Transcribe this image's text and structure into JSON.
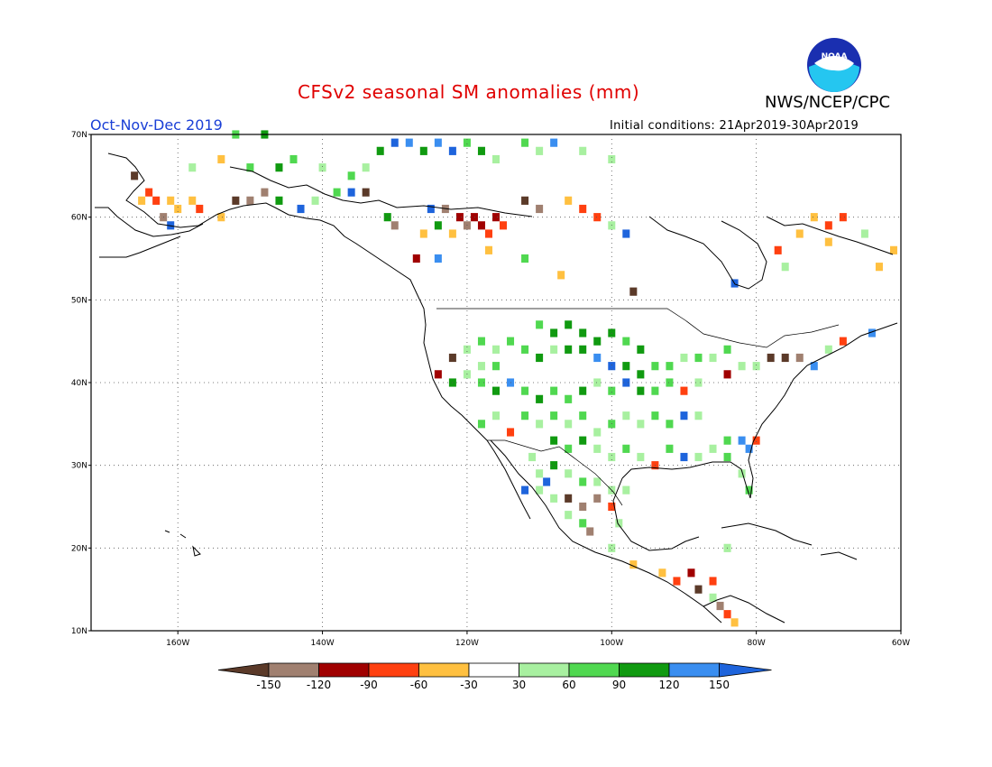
{
  "header": {
    "title": "CFSv2 seasonal SM anomalies (mm)",
    "agency": "NWS/NCEP/CPC",
    "season": "Oct-Nov-Dec 2019",
    "initial_conditions": "Initial conditions: 21Apr2019-30Apr2019",
    "logo_text": "NOAA"
  },
  "map": {
    "projection": "lat-lon",
    "lon_range": [
      -172,
      -60
    ],
    "lat_range": [
      10,
      70
    ],
    "lat_ticks": [
      "10N",
      "20N",
      "30N",
      "40N",
      "50N",
      "60N",
      "70N"
    ],
    "lon_ticks": [
      "160W",
      "140W",
      "120W",
      "100W",
      "80W",
      "60W"
    ],
    "grid": true
  },
  "colorbar": {
    "labels": [
      "-150",
      "-120",
      "-90",
      "-60",
      "-30",
      "30",
      "60",
      "90",
      "120",
      "150"
    ],
    "colors": [
      "#5b3a29",
      "#a08070",
      "#a00000",
      "#ff4010",
      "#ffc040",
      "#ffffff",
      "#a8f0a0",
      "#50d850",
      "#109a10",
      "#3a8ef0",
      "#1e64dc"
    ]
  },
  "anomaly_cells": [
    {
      "lon": -166,
      "lat": 65,
      "c": "#5b3a29"
    },
    {
      "lon": -164,
      "lat": 63,
      "c": "#ff4010"
    },
    {
      "lon": -165,
      "lat": 62,
      "c": "#ffc040"
    },
    {
      "lon": -163,
      "lat": 62,
      "c": "#ff4010"
    },
    {
      "lon": -161,
      "lat": 62,
      "c": "#ffc040"
    },
    {
      "lon": -160,
      "lat": 61,
      "c": "#ffc040"
    },
    {
      "lon": -158,
      "lat": 62,
      "c": "#ffc040"
    },
    {
      "lon": -157,
      "lat": 61,
      "c": "#ff4010"
    },
    {
      "lon": -162,
      "lat": 60,
      "c": "#a08070"
    },
    {
      "lon": -161,
      "lat": 59,
      "c": "#1e64dc"
    },
    {
      "lon": -154,
      "lat": 60,
      "c": "#ffc040"
    },
    {
      "lon": -152,
      "lat": 62,
      "c": "#5b3a29"
    },
    {
      "lon": -150,
      "lat": 62,
      "c": "#a08070"
    },
    {
      "lon": -148,
      "lat": 63,
      "c": "#a08070"
    },
    {
      "lon": -146,
      "lat": 62,
      "c": "#109a10"
    },
    {
      "lon": -143,
      "lat": 61,
      "c": "#1e64dc"
    },
    {
      "lon": -141,
      "lat": 62,
      "c": "#a8f0a0"
    },
    {
      "lon": -138,
      "lat": 63,
      "c": "#50d850"
    },
    {
      "lon": -136,
      "lat": 63,
      "c": "#1e64dc"
    },
    {
      "lon": -134,
      "lat": 63,
      "c": "#5b3a29"
    },
    {
      "lon": -158,
      "lat": 66,
      "c": "#a8f0a0"
    },
    {
      "lon": -154,
      "lat": 67,
      "c": "#ffc040"
    },
    {
      "lon": -150,
      "lat": 66,
      "c": "#50d850"
    },
    {
      "lon": -146,
      "lat": 66,
      "c": "#109a10"
    },
    {
      "lon": -144,
      "lat": 67,
      "c": "#50d850"
    },
    {
      "lon": -140,
      "lat": 66,
      "c": "#a8f0a0"
    },
    {
      "lon": -136,
      "lat": 65,
      "c": "#50d850"
    },
    {
      "lon": -134,
      "lat": 66,
      "c": "#a8f0a0"
    },
    {
      "lon": -132,
      "lat": 68,
      "c": "#109a10"
    },
    {
      "lon": -130,
      "lat": 69,
      "c": "#1e64dc"
    },
    {
      "lon": -128,
      "lat": 69,
      "c": "#3a8ef0"
    },
    {
      "lon": -126,
      "lat": 68,
      "c": "#109a10"
    },
    {
      "lon": -124,
      "lat": 69,
      "c": "#3a8ef0"
    },
    {
      "lon": -122,
      "lat": 68,
      "c": "#1e64dc"
    },
    {
      "lon": -120,
      "lat": 69,
      "c": "#50d850"
    },
    {
      "lon": -118,
      "lat": 68,
      "c": "#109a10"
    },
    {
      "lon": -116,
      "lat": 67,
      "c": "#a8f0a0"
    },
    {
      "lon": -112,
      "lat": 69,
      "c": "#50d850"
    },
    {
      "lon": -110,
      "lat": 68,
      "c": "#a8f0a0"
    },
    {
      "lon": -108,
      "lat": 69,
      "c": "#3a8ef0"
    },
    {
      "lon": -104,
      "lat": 68,
      "c": "#a8f0a0"
    },
    {
      "lon": -100,
      "lat": 67,
      "c": "#a8f0a0"
    },
    {
      "lon": -152,
      "lat": 70,
      "c": "#50d850"
    },
    {
      "lon": -148,
      "lat": 70,
      "c": "#109a10"
    },
    {
      "lon": -131,
      "lat": 60,
      "c": "#109a10"
    },
    {
      "lon": -130,
      "lat": 59,
      "c": "#a08070"
    },
    {
      "lon": -125,
      "lat": 61,
      "c": "#1e64dc"
    },
    {
      "lon": -123,
      "lat": 61,
      "c": "#a08070"
    },
    {
      "lon": -121,
      "lat": 60,
      "c": "#a00000"
    },
    {
      "lon": -119,
      "lat": 60,
      "c": "#a00000"
    },
    {
      "lon": -118,
      "lat": 59,
      "c": "#a00000"
    },
    {
      "lon": -117,
      "lat": 58,
      "c": "#ff4010"
    },
    {
      "lon": -116,
      "lat": 60,
      "c": "#a00000"
    },
    {
      "lon": -115,
      "lat": 59,
      "c": "#ff4010"
    },
    {
      "lon": -120,
      "lat": 59,
      "c": "#a08070"
    },
    {
      "lon": -122,
      "lat": 58,
      "c": "#ffc040"
    },
    {
      "lon": -124,
      "lat": 59,
      "c": "#109a10"
    },
    {
      "lon": -126,
      "lat": 58,
      "c": "#ffc040"
    },
    {
      "lon": -112,
      "lat": 62,
      "c": "#5b3a29"
    },
    {
      "lon": -110,
      "lat": 61,
      "c": "#a08070"
    },
    {
      "lon": -106,
      "lat": 62,
      "c": "#ffc040"
    },
    {
      "lon": -104,
      "lat": 61,
      "c": "#ff4010"
    },
    {
      "lon": -102,
      "lat": 60,
      "c": "#ff4010"
    },
    {
      "lon": -100,
      "lat": 59,
      "c": "#a8f0a0"
    },
    {
      "lon": -98,
      "lat": 58,
      "c": "#1e64dc"
    },
    {
      "lon": -127,
      "lat": 55,
      "c": "#a00000"
    },
    {
      "lon": -124,
      "lat": 55,
      "c": "#3a8ef0"
    },
    {
      "lon": -117,
      "lat": 56,
      "c": "#ffc040"
    },
    {
      "lon": -112,
      "lat": 55,
      "c": "#50d850"
    },
    {
      "lon": -107,
      "lat": 53,
      "c": "#ffc040"
    },
    {
      "lon": -97,
      "lat": 51,
      "c": "#5b3a29"
    },
    {
      "lon": -83,
      "lat": 52,
      "c": "#1e64dc"
    },
    {
      "lon": -70,
      "lat": 59,
      "c": "#ff4010"
    },
    {
      "lon": -68,
      "lat": 60,
      "c": "#ff4010"
    },
    {
      "lon": -72,
      "lat": 60,
      "c": "#ffc040"
    },
    {
      "lon": -74,
      "lat": 58,
      "c": "#ffc040"
    },
    {
      "lon": -70,
      "lat": 57,
      "c": "#ffc040"
    },
    {
      "lon": -65,
      "lat": 58,
      "c": "#a8f0a0"
    },
    {
      "lon": -63,
      "lat": 54,
      "c": "#ffc040"
    },
    {
      "lon": -61,
      "lat": 56,
      "c": "#ffc040"
    },
    {
      "lon": -77,
      "lat": 56,
      "c": "#ff4010"
    },
    {
      "lon": -76,
      "lat": 54,
      "c": "#a8f0a0"
    },
    {
      "lon": -110,
      "lat": 47,
      "c": "#50d850"
    },
    {
      "lon": -108,
      "lat": 46,
      "c": "#109a10"
    },
    {
      "lon": -106,
      "lat": 47,
      "c": "#109a10"
    },
    {
      "lon": -104,
      "lat": 46,
      "c": "#109a10"
    },
    {
      "lon": -102,
      "lat": 45,
      "c": "#109a10"
    },
    {
      "lon": -100,
      "lat": 46,
      "c": "#109a10"
    },
    {
      "lon": -98,
      "lat": 45,
      "c": "#50d850"
    },
    {
      "lon": -96,
      "lat": 44,
      "c": "#109a10"
    },
    {
      "lon": -104,
      "lat": 44,
      "c": "#109a10"
    },
    {
      "lon": -102,
      "lat": 43,
      "c": "#3a8ef0"
    },
    {
      "lon": -100,
      "lat": 42,
      "c": "#1e64dc"
    },
    {
      "lon": -98,
      "lat": 42,
      "c": "#109a10"
    },
    {
      "lon": -96,
      "lat": 41,
      "c": "#109a10"
    },
    {
      "lon": -94,
      "lat": 42,
      "c": "#50d850"
    },
    {
      "lon": -92,
      "lat": 42,
      "c": "#50d850"
    },
    {
      "lon": -90,
      "lat": 43,
      "c": "#a8f0a0"
    },
    {
      "lon": -88,
      "lat": 43,
      "c": "#50d850"
    },
    {
      "lon": -86,
      "lat": 43,
      "c": "#a8f0a0"
    },
    {
      "lon": -84,
      "lat": 44,
      "c": "#50d850"
    },
    {
      "lon": -82,
      "lat": 42,
      "c": "#a8f0a0"
    },
    {
      "lon": -80,
      "lat": 42,
      "c": "#a8f0a0"
    },
    {
      "lon": -78,
      "lat": 43,
      "c": "#5b3a29"
    },
    {
      "lon": -76,
      "lat": 43,
      "c": "#5b3a29"
    },
    {
      "lon": -74,
      "lat": 43,
      "c": "#a08070"
    },
    {
      "lon": -72,
      "lat": 42,
      "c": "#3a8ef0"
    },
    {
      "lon": -70,
      "lat": 44,
      "c": "#a8f0a0"
    },
    {
      "lon": -68,
      "lat": 45,
      "c": "#ff4010"
    },
    {
      "lon": -64,
      "lat": 46,
      "c": "#3a8ef0"
    },
    {
      "lon": -84,
      "lat": 41,
      "c": "#a00000"
    },
    {
      "lon": -88,
      "lat": 40,
      "c": "#a8f0a0"
    },
    {
      "lon": -90,
      "lat": 39,
      "c": "#ff4010"
    },
    {
      "lon": -92,
      "lat": 40,
      "c": "#50d850"
    },
    {
      "lon": -94,
      "lat": 39,
      "c": "#50d850"
    },
    {
      "lon": -96,
      "lat": 39,
      "c": "#109a10"
    },
    {
      "lon": -98,
      "lat": 40,
      "c": "#1e64dc"
    },
    {
      "lon": -100,
      "lat": 39,
      "c": "#50d850"
    },
    {
      "lon": -102,
      "lat": 40,
      "c": "#a8f0a0"
    },
    {
      "lon": -104,
      "lat": 39,
      "c": "#109a10"
    },
    {
      "lon": -106,
      "lat": 38,
      "c": "#50d850"
    },
    {
      "lon": -108,
      "lat": 39,
      "c": "#50d850"
    },
    {
      "lon": -110,
      "lat": 38,
      "c": "#109a10"
    },
    {
      "lon": -112,
      "lat": 39,
      "c": "#50d850"
    },
    {
      "lon": -114,
      "lat": 40,
      "c": "#3a8ef0"
    },
    {
      "lon": -116,
      "lat": 39,
      "c": "#109a10"
    },
    {
      "lon": -118,
      "lat": 40,
      "c": "#50d850"
    },
    {
      "lon": -120,
      "lat": 41,
      "c": "#a8f0a0"
    },
    {
      "lon": -122,
      "lat": 40,
      "c": "#109a10"
    },
    {
      "lon": -124,
      "lat": 41,
      "c": "#a00000"
    },
    {
      "lon": -120,
      "lat": 44,
      "c": "#a8f0a0"
    },
    {
      "lon": -118,
      "lat": 45,
      "c": "#50d850"
    },
    {
      "lon": -116,
      "lat": 44,
      "c": "#a8f0a0"
    },
    {
      "lon": -114,
      "lat": 45,
      "c": "#50d850"
    },
    {
      "lon": -112,
      "lat": 44,
      "c": "#50d850"
    },
    {
      "lon": -110,
      "lat": 43,
      "c": "#109a10"
    },
    {
      "lon": -108,
      "lat": 44,
      "c": "#a8f0a0"
    },
    {
      "lon": -106,
      "lat": 44,
      "c": "#109a10"
    },
    {
      "lon": -118,
      "lat": 42,
      "c": "#a8f0a0"
    },
    {
      "lon": -116,
      "lat": 42,
      "c": "#50d850"
    },
    {
      "lon": -122,
      "lat": 43,
      "c": "#5b3a29"
    },
    {
      "lon": -112,
      "lat": 36,
      "c": "#50d850"
    },
    {
      "lon": -110,
      "lat": 35,
      "c": "#a8f0a0"
    },
    {
      "lon": -108,
      "lat": 36,
      "c": "#50d850"
    },
    {
      "lon": -106,
      "lat": 35,
      "c": "#a8f0a0"
    },
    {
      "lon": -104,
      "lat": 36,
      "c": "#50d850"
    },
    {
      "lon": -102,
      "lat": 34,
      "c": "#a8f0a0"
    },
    {
      "lon": -100,
      "lat": 35,
      "c": "#50d850"
    },
    {
      "lon": -98,
      "lat": 36,
      "c": "#a8f0a0"
    },
    {
      "lon": -96,
      "lat": 35,
      "c": "#a8f0a0"
    },
    {
      "lon": -94,
      "lat": 36,
      "c": "#50d850"
    },
    {
      "lon": -92,
      "lat": 35,
      "c": "#50d850"
    },
    {
      "lon": -90,
      "lat": 36,
      "c": "#1e64dc"
    },
    {
      "lon": -88,
      "lat": 36,
      "c": "#a8f0a0"
    },
    {
      "lon": -114,
      "lat": 34,
      "c": "#ff4010"
    },
    {
      "lon": -116,
      "lat": 36,
      "c": "#a8f0a0"
    },
    {
      "lon": -118,
      "lat": 35,
      "c": "#50d850"
    },
    {
      "lon": -108,
      "lat": 33,
      "c": "#109a10"
    },
    {
      "lon": -106,
      "lat": 32,
      "c": "#50d850"
    },
    {
      "lon": -104,
      "lat": 33,
      "c": "#109a10"
    },
    {
      "lon": -102,
      "lat": 32,
      "c": "#a8f0a0"
    },
    {
      "lon": -100,
      "lat": 31,
      "c": "#a8f0a0"
    },
    {
      "lon": -98,
      "lat": 32,
      "c": "#50d850"
    },
    {
      "lon": -96,
      "lat": 31,
      "c": "#a8f0a0"
    },
    {
      "lon": -94,
      "lat": 30,
      "c": "#ff4010"
    },
    {
      "lon": -92,
      "lat": 32,
      "c": "#50d850"
    },
    {
      "lon": -90,
      "lat": 31,
      "c": "#1e64dc"
    },
    {
      "lon": -88,
      "lat": 31,
      "c": "#a8f0a0"
    },
    {
      "lon": -86,
      "lat": 32,
      "c": "#a8f0a0"
    },
    {
      "lon": -84,
      "lat": 33,
      "c": "#50d850"
    },
    {
      "lon": -82,
      "lat": 33,
      "c": "#3a8ef0"
    },
    {
      "lon": -81,
      "lat": 32,
      "c": "#3a8ef0"
    },
    {
      "lon": -80,
      "lat": 33,
      "c": "#ff4010"
    },
    {
      "lon": -84,
      "lat": 31,
      "c": "#50d850"
    },
    {
      "lon": -82,
      "lat": 29,
      "c": "#a8f0a0"
    },
    {
      "lon": -81,
      "lat": 27,
      "c": "#50d850"
    },
    {
      "lon": -111,
      "lat": 31,
      "c": "#a8f0a0"
    },
    {
      "lon": -110,
      "lat": 29,
      "c": "#a8f0a0"
    },
    {
      "lon": -108,
      "lat": 30,
      "c": "#109a10"
    },
    {
      "lon": -106,
      "lat": 29,
      "c": "#a8f0a0"
    },
    {
      "lon": -104,
      "lat": 28,
      "c": "#50d850"
    },
    {
      "lon": -102,
      "lat": 28,
      "c": "#a8f0a0"
    },
    {
      "lon": -100,
      "lat": 27,
      "c": "#a8f0a0"
    },
    {
      "lon": -98,
      "lat": 27,
      "c": "#a8f0a0"
    },
    {
      "lon": -106,
      "lat": 26,
      "c": "#5b3a29"
    },
    {
      "lon": -104,
      "lat": 25,
      "c": "#a08070"
    },
    {
      "lon": -102,
      "lat": 26,
      "c": "#a08070"
    },
    {
      "lon": -104,
      "lat": 23,
      "c": "#50d850"
    },
    {
      "lon": -106,
      "lat": 24,
      "c": "#a8f0a0"
    },
    {
      "lon": -108,
      "lat": 26,
      "c": "#a8f0a0"
    },
    {
      "lon": -110,
      "lat": 27,
      "c": "#a8f0a0"
    },
    {
      "lon": -109,
      "lat": 28,
      "c": "#1e64dc"
    },
    {
      "lon": -112,
      "lat": 27,
      "c": "#1e64dc"
    },
    {
      "lon": -100,
      "lat": 25,
      "c": "#ff4010"
    },
    {
      "lon": -103,
      "lat": 22,
      "c": "#a08070"
    },
    {
      "lon": -100,
      "lat": 20,
      "c": "#a8f0a0"
    },
    {
      "lon": -97,
      "lat": 18,
      "c": "#ffc040"
    },
    {
      "lon": -93,
      "lat": 17,
      "c": "#ffc040"
    },
    {
      "lon": -91,
      "lat": 16,
      "c": "#ff4010"
    },
    {
      "lon": -89,
      "lat": 17,
      "c": "#a00000"
    },
    {
      "lon": -88,
      "lat": 15,
      "c": "#5b3a29"
    },
    {
      "lon": -86,
      "lat": 14,
      "c": "#a8f0a0"
    },
    {
      "lon": -85,
      "lat": 13,
      "c": "#a08070"
    },
    {
      "lon": -84,
      "lat": 12,
      "c": "#ff4010"
    },
    {
      "lon": -83,
      "lat": 11,
      "c": "#ffc040"
    },
    {
      "lon": -86,
      "lat": 16,
      "c": "#ff4010"
    },
    {
      "lon": -84,
      "lat": 20,
      "c": "#a8f0a0"
    },
    {
      "lon": -99,
      "lat": 23,
      "c": "#a8f0a0"
    }
  ]
}
